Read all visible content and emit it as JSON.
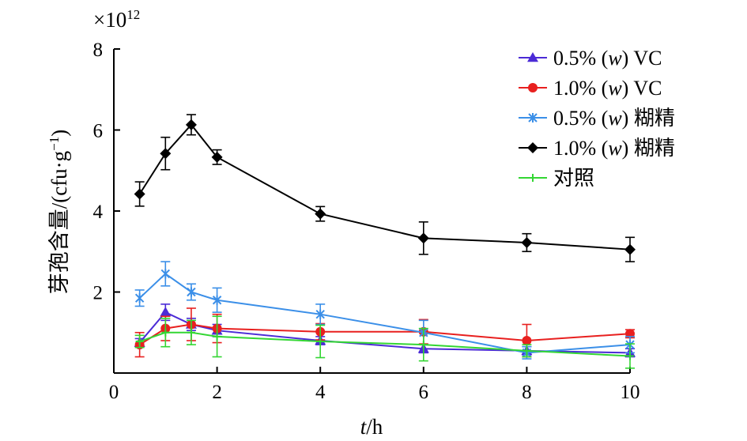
{
  "chart_data": {
    "type": "line",
    "multiplier": "×10",
    "multiplier_exp": "12",
    "x_label_var": "t",
    "x_label_unit": "/h",
    "y_label": "芽孢含量/(cfu·g",
    "y_label_sup": "−1",
    "y_label_close": ")",
    "xlim": [
      0,
      10
    ],
    "ylim": [
      0,
      8
    ],
    "x_ticks": [
      0,
      2,
      4,
      6,
      8,
      10
    ],
    "y_ticks": [
      2,
      4,
      6,
      8
    ],
    "legend_position": "top-right",
    "grid": false,
    "series": [
      {
        "name": "0.5% (w) VC",
        "name_pre": "0.5% (",
        "name_var": "w",
        "name_post": ") VC",
        "color": "#4b2bd6",
        "marker": "triangle",
        "x": [
          0.5,
          1,
          1.5,
          2,
          4,
          6,
          8,
          10
        ],
        "y": [
          0.75,
          1.5,
          1.2,
          1.05,
          0.8,
          0.6,
          0.55,
          0.5
        ],
        "err": [
          0.1,
          0.2,
          0.15,
          0.15,
          0.1,
          0.1,
          0.1,
          0.1
        ]
      },
      {
        "name": "1.0% (w) VC",
        "name_pre": "1.0% (",
        "name_var": "w",
        "name_post": ") VC",
        "color": "#e8201f",
        "marker": "circle",
        "x": [
          0.5,
          1,
          1.5,
          2,
          4,
          6,
          8,
          10
        ],
        "y": [
          0.7,
          1.1,
          1.2,
          1.1,
          1.02,
          1.02,
          0.8,
          0.97
        ],
        "err": [
          0.3,
          0.3,
          0.4,
          0.35,
          0.2,
          0.3,
          0.4,
          0.1
        ]
      },
      {
        "name": "0.5% (w) 糊精",
        "name_pre": "0.5% (",
        "name_var": "w",
        "name_post": ") 糊精",
        "color": "#3b8fe8",
        "marker": "star",
        "x": [
          0.5,
          1,
          1.5,
          2,
          4,
          6,
          8,
          10
        ],
        "y": [
          1.85,
          2.45,
          2.0,
          1.8,
          1.45,
          1.0,
          0.5,
          0.7
        ],
        "err": [
          0.2,
          0.3,
          0.2,
          0.3,
          0.25,
          0.3,
          0.15,
          0.2
        ]
      },
      {
        "name": "1.0% (w) 糊精",
        "name_pre": "1.0% (",
        "name_var": "w",
        "name_post": ") 糊精",
        "color": "#000000",
        "marker": "diamond",
        "x": [
          0.5,
          1,
          1.5,
          2,
          4,
          6,
          8,
          10
        ],
        "y": [
          4.42,
          5.42,
          6.13,
          5.33,
          3.93,
          3.33,
          3.22,
          3.05
        ],
        "err": [
          0.3,
          0.4,
          0.25,
          0.18,
          0.18,
          0.4,
          0.22,
          0.3
        ]
      },
      {
        "name": "对照",
        "name_pre": "对照",
        "name_var": "",
        "name_post": "",
        "color": "#33d633",
        "marker": "plus",
        "x": [
          0.5,
          1,
          1.5,
          2,
          4,
          6,
          8,
          10
        ],
        "y": [
          0.78,
          1.0,
          1.0,
          0.9,
          0.78,
          0.7,
          0.55,
          0.42
        ],
        "err": [
          0.15,
          0.35,
          0.3,
          0.5,
          0.4,
          0.4,
          0.15,
          0.3
        ]
      }
    ]
  }
}
